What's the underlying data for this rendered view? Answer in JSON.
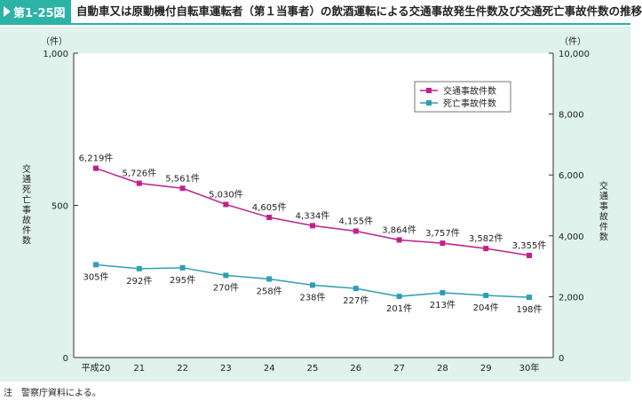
{
  "header": {
    "figure_label": "第1-25図",
    "title": "自動車又は原動機付自転車運転者（第１当事者）の飲酒運転による交通事故発生件数及び交通死亡事故件数の推移"
  },
  "note": "注　警察庁資料による。",
  "colors": {
    "accent": "#2bb3a5",
    "panel_bg": "#dff2ec",
    "accidents": "#c0208a",
    "fatal": "#2e9fb5"
  },
  "chart_data": {
    "type": "line",
    "categories": [
      "平成20",
      "21",
      "22",
      "23",
      "24",
      "25",
      "26",
      "27",
      "28",
      "29",
      "30年"
    ],
    "left_axis": {
      "unit": "（件）",
      "label": "交通死亡事故件数",
      "ylim": [
        0,
        1000
      ],
      "ticks": [
        "0",
        "500",
        "1,000"
      ],
      "tick_values": [
        0,
        500,
        1000
      ]
    },
    "right_axis": {
      "unit": "（件）",
      "label": "交通事故件数",
      "ylim": [
        0,
        10000
      ],
      "ticks": [
        "0",
        "2,000",
        "4,000",
        "6,000",
        "8,000",
        "10,000"
      ],
      "tick_values": [
        0,
        2000,
        4000,
        6000,
        8000,
        10000
      ]
    },
    "legend_position": "top-right",
    "grid": false,
    "series": [
      {
        "name": "交通事故件数",
        "axis": "right",
        "values": [
          6219,
          5726,
          5561,
          5030,
          4605,
          4334,
          4155,
          3864,
          3757,
          3582,
          3355
        ],
        "labels": [
          "6,219件",
          "5,726件",
          "5,561件",
          "5,030件",
          "4,605件",
          "4,334件",
          "4,155件",
          "3,864件",
          "3,757件",
          "3,582件",
          "3,355件"
        ]
      },
      {
        "name": "死亡事故件数",
        "axis": "left",
        "values": [
          305,
          292,
          295,
          270,
          258,
          238,
          227,
          201,
          213,
          204,
          198
        ],
        "labels": [
          "305件",
          "292件",
          "295件",
          "270件",
          "258件",
          "238件",
          "227件",
          "201件",
          "213件",
          "204件",
          "198件"
        ]
      }
    ]
  }
}
